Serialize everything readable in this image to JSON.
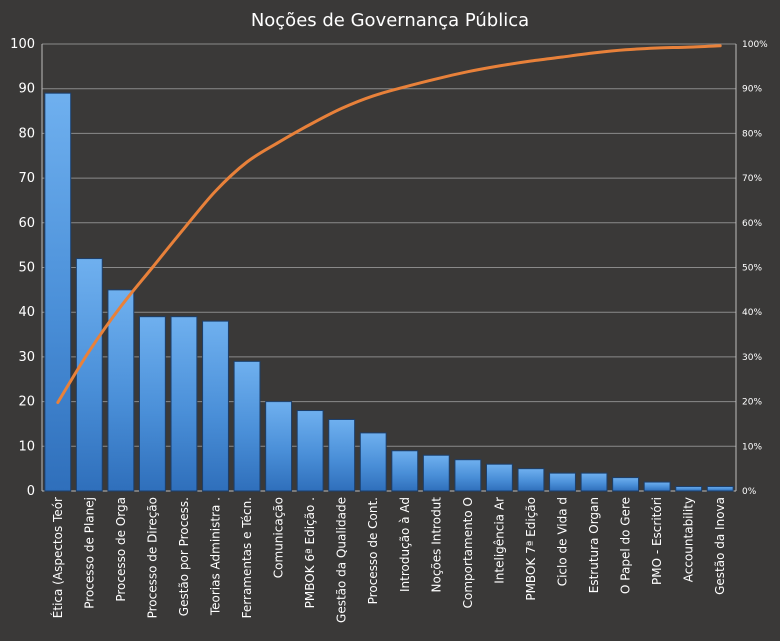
{
  "chart_data": {
    "type": "bar",
    "title": "Noções de Governança Pública",
    "categories": [
      "Ética (Aspectos Teór",
      "Processo de Planej",
      "Processo de Orga",
      "Processo de Direção",
      "Gestão por Process.",
      "Teorias Administra .",
      "Ferramentas e Técn.",
      "Comunicação",
      "PMBOK 6ª Edição .",
      "Gestão da Qualidade",
      "Processo de Cont.",
      "Introdução à Ad",
      "Noções Introdut",
      "Comportamento O",
      "Inteligência Ar",
      "PMBOK 7ª Edição",
      "Ciclo de Vida d",
      "Estrutura Organ",
      "O Papel do Gere",
      "PMO - Escritóri",
      "Accountability",
      "Gestão da Inova"
    ],
    "series": [
      {
        "type": "bar",
        "axis": "left",
        "color": "#4a8fd8",
        "values": [
          89,
          52,
          45,
          39,
          39,
          38,
          29,
          20,
          18,
          16,
          13,
          9,
          8,
          7,
          6,
          5,
          4,
          4,
          3,
          2,
          1,
          1
        ]
      },
      {
        "type": "line",
        "axis": "right",
        "color": "#e8813a",
        "values": [
          19.8,
          31.3,
          41.3,
          50.0,
          58.7,
          67.1,
          73.6,
          78.0,
          82.0,
          85.6,
          88.4,
          90.4,
          92.2,
          93.8,
          95.1,
          96.2,
          97.1,
          98.0,
          98.7,
          99.1,
          99.3,
          99.6
        ]
      }
    ],
    "y_left": {
      "min": 0,
      "max": 100,
      "ticks": [
        "0",
        "10",
        "20",
        "30",
        "40",
        "50",
        "60",
        "70",
        "80",
        "90",
        "100"
      ]
    },
    "y_right": {
      "min": 0,
      "max": 100,
      "ticks": [
        "0%",
        "10%",
        "20%",
        "30%",
        "40%",
        "50%",
        "60%",
        "70%",
        "80%",
        "90%",
        "100%"
      ]
    },
    "grid": true,
    "legend": "none",
    "colors": {
      "background": "#3a3938",
      "bar": "#4a8fd8",
      "line": "#e8813a",
      "text": "#ffffff"
    }
  }
}
